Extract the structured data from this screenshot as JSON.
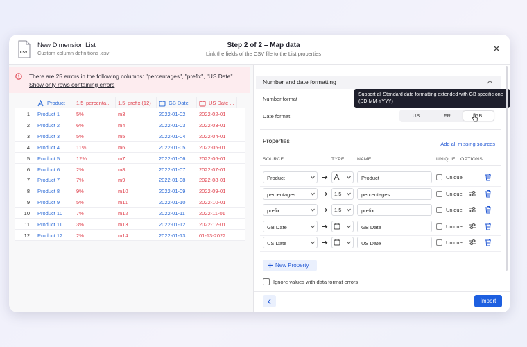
{
  "header": {
    "file_icon_label": "CSV",
    "title": "New Dimension List",
    "subtitle": "Custom column definitions .csv",
    "step": "Step 2 of 2 – Map data",
    "step_description": "Link the fields of the CSV file to the List properties"
  },
  "errors": {
    "message": "There are 25 errors in the following columns: \"percentages\", \"prefix\", \"US Date\".",
    "link": "Show only rows containing errors"
  },
  "table": {
    "columns": [
      {
        "icon": "text",
        "label": "Product",
        "color": "#2d6bd6"
      },
      {
        "type_label": "1.5",
        "label": "percenta...",
        "color": "#e0434f"
      },
      {
        "type_label": "1.5",
        "label": "prefix (12)",
        "color": "#e0434f"
      },
      {
        "icon": "date",
        "label": "GB Date",
        "color": "#2d6bd6"
      },
      {
        "icon": "date",
        "label": "US Date ...",
        "color": "#e0434f"
      }
    ],
    "rows": [
      [
        1,
        "Product 1",
        "5%",
        "m3",
        "2022-01-02",
        "2022-02-01"
      ],
      [
        2,
        "Product 2",
        "6%",
        "m4",
        "2022-01-03",
        "2022-03-01"
      ],
      [
        3,
        "Product 3",
        "5%",
        "m5",
        "2022-01-04",
        "2022-04-01"
      ],
      [
        4,
        "Product 4",
        "11%",
        "m6",
        "2022-01-05",
        "2022-05-01"
      ],
      [
        5,
        "Product 5",
        "12%",
        "m7",
        "2022-01-06",
        "2022-06-01"
      ],
      [
        6,
        "Product 6",
        "2%",
        "m8",
        "2022-01-07",
        "2022-07-01"
      ],
      [
        7,
        "Product 7",
        "7%",
        "m9",
        "2022-01-08",
        "2022-08-01"
      ],
      [
        8,
        "Product 8",
        "9%",
        "m10",
        "2022-01-09",
        "2022-09-01"
      ],
      [
        9,
        "Product 9",
        "5%",
        "m11",
        "2022-01-10",
        "2022-10-01"
      ],
      [
        10,
        "Product 10",
        "7%",
        "m12",
        "2022-01-11",
        "2022-11-01"
      ],
      [
        11,
        "Product 11",
        "3%",
        "m13",
        "2022-01-12",
        "2022-12-01"
      ],
      [
        12,
        "Product 12",
        "2%",
        "m14",
        "2022-01-13",
        "01-13-2022"
      ]
    ]
  },
  "formatting": {
    "title": "Number and date formatting",
    "number_format_label": "Number format",
    "date_format_label": "Date format",
    "date_options": [
      "US",
      "FR",
      "GB"
    ],
    "selected_index": 2,
    "tooltip": "Support all Standard date formatting extended with GB specific one (DD-MM-YYYY)"
  },
  "properties": {
    "title": "Properties",
    "add_link": "Add all missing sources",
    "columns": [
      "SOURCE",
      "TYPE",
      "NAME",
      "UNIQUE",
      "OPTIONS"
    ],
    "rows": [
      {
        "source": "Product",
        "type": "text",
        "name": "Product",
        "unique_label": "Unique",
        "options": false
      },
      {
        "source": "percentages",
        "type": "number",
        "type_label": "1.5",
        "name": "percentages",
        "unique_label": "Unique",
        "options": true
      },
      {
        "source": "prefix",
        "type": "number",
        "type_label": "1.5",
        "name": "prefix",
        "unique_label": "Unique",
        "options": true
      },
      {
        "source": "GB Date",
        "type": "date",
        "name": "GB Date",
        "unique_label": "Unique",
        "options": true
      },
      {
        "source": "US Date",
        "type": "date",
        "name": "US Date",
        "unique_label": "Unique",
        "options": true
      }
    ],
    "new_property": "New Property",
    "ignore_label": "Ignore values with data format errors"
  },
  "footer": {
    "import": "Import"
  }
}
